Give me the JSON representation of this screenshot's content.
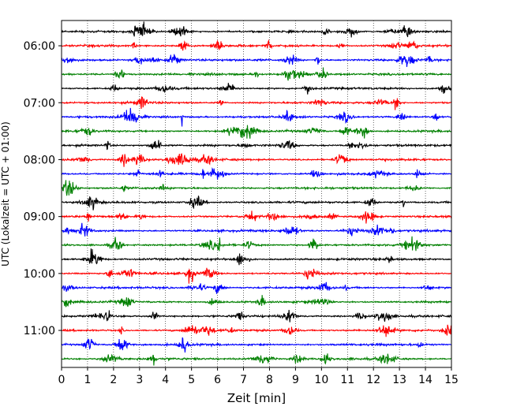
{
  "chart_data": {
    "type": "line",
    "subtype": "helicorder (seismogram drum plot)",
    "xlabel": "Zeit  [min]",
    "ylabel": "UTC (Lokalzeit = UTC + 01:00)",
    "xlim": [
      0,
      15
    ],
    "x_ticks": [
      "0",
      "1",
      "2",
      "3",
      "4",
      "5",
      "6",
      "7",
      "8",
      "9",
      "10",
      "11",
      "12",
      "13",
      "14",
      "15"
    ],
    "y_tick_labels": [
      "06:00",
      "07:00",
      "08:00",
      "09:00",
      "10:00",
      "11:00"
    ],
    "rows": 24,
    "row_minutes": 15,
    "start_time": "05:45",
    "trace_colors": [
      "#000000",
      "#ff0000",
      "#0000ff",
      "#008000"
    ],
    "grid": "vertical dotted lines at each minute"
  }
}
